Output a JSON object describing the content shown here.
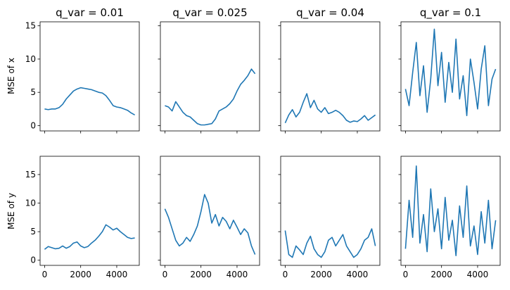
{
  "figure": {
    "ylabels": [
      "MSE of x",
      "MSE of y"
    ]
  },
  "chart_data": [
    {
      "type": "line",
      "row": 0,
      "col": 0,
      "title": "q_var = 0.01",
      "xlim": [
        -250,
        5250
      ],
      "ylim": [
        -0.8,
        15.6
      ],
      "xticks": [
        0,
        2000,
        4000
      ],
      "yticks": [
        0,
        5,
        10,
        15
      ],
      "series": [
        {
          "color": "#1f77b4",
          "x": [
            0,
            200,
            400,
            600,
            800,
            1000,
            1200,
            1400,
            1600,
            1800,
            2000,
            2200,
            2400,
            2600,
            2800,
            3000,
            3200,
            3400,
            3600,
            3800,
            4000,
            4200,
            4400,
            4600,
            4800,
            5000
          ],
          "y": [
            2.5,
            2.4,
            2.5,
            2.5,
            2.7,
            3.2,
            4.0,
            4.6,
            5.2,
            5.5,
            5.7,
            5.6,
            5.5,
            5.4,
            5.2,
            5.0,
            4.9,
            4.5,
            3.8,
            3.0,
            2.8,
            2.7,
            2.5,
            2.3,
            1.9,
            1.6
          ]
        }
      ]
    },
    {
      "type": "line",
      "row": 0,
      "col": 1,
      "title": "q_var = 0.025",
      "xlim": [
        -250,
        5250
      ],
      "ylim": [
        -0.8,
        15.6
      ],
      "xticks": [
        0,
        2000,
        4000
      ],
      "yticks": [
        0,
        5,
        10,
        15
      ],
      "series": [
        {
          "color": "#1f77b4",
          "x": [
            0,
            200,
            400,
            600,
            800,
            1000,
            1200,
            1400,
            1600,
            1800,
            2000,
            2200,
            2400,
            2600,
            2800,
            3000,
            3200,
            3400,
            3600,
            3800,
            4000,
            4200,
            4400,
            4600,
            4800,
            5000
          ],
          "y": [
            3.0,
            2.8,
            2.2,
            3.6,
            2.8,
            2.0,
            1.5,
            1.3,
            0.8,
            0.3,
            0.1,
            0.1,
            0.2,
            0.3,
            1.0,
            2.2,
            2.5,
            2.8,
            3.3,
            4.0,
            5.2,
            6.2,
            6.8,
            7.5,
            8.5,
            7.8
          ]
        }
      ]
    },
    {
      "type": "line",
      "row": 0,
      "col": 2,
      "title": "q_var = 0.04",
      "xlim": [
        -250,
        5250
      ],
      "ylim": [
        -0.8,
        15.6
      ],
      "xticks": [
        0,
        2000,
        4000
      ],
      "yticks": [
        0,
        5,
        10,
        15
      ],
      "series": [
        {
          "color": "#1f77b4",
          "x": [
            0,
            200,
            400,
            600,
            800,
            1000,
            1200,
            1400,
            1600,
            1800,
            2000,
            2200,
            2400,
            2600,
            2800,
            3000,
            3200,
            3400,
            3600,
            3800,
            4000,
            4200,
            4400,
            4600,
            4800,
            5000
          ],
          "y": [
            0.4,
            1.6,
            2.4,
            1.3,
            2.0,
            3.5,
            4.8,
            2.7,
            3.8,
            2.5,
            2.0,
            2.7,
            1.8,
            2.0,
            2.3,
            2.0,
            1.5,
            0.8,
            0.5,
            0.7,
            0.6,
            1.0,
            1.5,
            0.8,
            1.2,
            1.6
          ]
        }
      ]
    },
    {
      "type": "line",
      "row": 0,
      "col": 3,
      "title": "q_var = 0.1",
      "xlim": [
        -250,
        5250
      ],
      "ylim": [
        -0.8,
        15.6
      ],
      "xticks": [
        0,
        2000,
        4000
      ],
      "yticks": [
        0,
        5,
        10,
        15
      ],
      "series": [
        {
          "color": "#1f77b4",
          "x": [
            0,
            200,
            400,
            600,
            800,
            1000,
            1200,
            1400,
            1600,
            1800,
            2000,
            2200,
            2400,
            2600,
            2800,
            3000,
            3200,
            3400,
            3600,
            3800,
            4000,
            4200,
            4400,
            4600,
            4800,
            5000
          ],
          "y": [
            5.5,
            3.0,
            8.0,
            12.5,
            4.5,
            9.0,
            2.0,
            7.0,
            14.5,
            6.0,
            11.0,
            3.5,
            9.5,
            5.0,
            13.0,
            4.0,
            7.5,
            1.5,
            10.0,
            6.5,
            2.5,
            8.5,
            12.0,
            3.0,
            7.0,
            8.5
          ]
        }
      ]
    },
    {
      "type": "line",
      "row": 1,
      "col": 0,
      "title": "",
      "xlim": [
        -250,
        5250
      ],
      "ylim": [
        -0.9,
        18.2
      ],
      "xticks": [
        0,
        2000,
        4000
      ],
      "yticks": [
        0,
        5,
        10,
        15
      ],
      "series": [
        {
          "color": "#1f77b4",
          "x": [
            0,
            200,
            400,
            600,
            800,
            1000,
            1200,
            1400,
            1600,
            1800,
            2000,
            2200,
            2400,
            2600,
            2800,
            3000,
            3200,
            3400,
            3600,
            3800,
            4000,
            4200,
            4400,
            4600,
            4800,
            5000
          ],
          "y": [
            1.9,
            2.4,
            2.2,
            2.0,
            2.1,
            2.5,
            2.1,
            2.4,
            3.0,
            3.2,
            2.5,
            2.2,
            2.4,
            3.0,
            3.5,
            4.2,
            5.0,
            6.2,
            5.8,
            5.3,
            5.6,
            5.0,
            4.5,
            4.0,
            3.8,
            3.9
          ]
        }
      ]
    },
    {
      "type": "line",
      "row": 1,
      "col": 1,
      "title": "",
      "xlim": [
        -250,
        5250
      ],
      "ylim": [
        -0.9,
        18.2
      ],
      "xticks": [
        0,
        2000,
        4000
      ],
      "yticks": [
        0,
        5,
        10,
        15
      ],
      "series": [
        {
          "color": "#1f77b4",
          "x": [
            0,
            200,
            400,
            600,
            800,
            1000,
            1200,
            1400,
            1600,
            1800,
            2000,
            2200,
            2400,
            2600,
            2800,
            3000,
            3200,
            3400,
            3600,
            3800,
            4000,
            4200,
            4400,
            4600,
            4800,
            5000
          ],
          "y": [
            9.0,
            7.5,
            5.5,
            3.5,
            2.5,
            3.0,
            4.0,
            3.3,
            4.5,
            6.0,
            8.5,
            11.5,
            10.0,
            6.5,
            8.0,
            6.0,
            7.5,
            6.8,
            5.5,
            7.0,
            5.8,
            4.5,
            5.5,
            4.8,
            2.5,
            1.0
          ]
        }
      ]
    },
    {
      "type": "line",
      "row": 1,
      "col": 2,
      "title": "",
      "xlim": [
        -250,
        5250
      ],
      "ylim": [
        -0.9,
        18.2
      ],
      "xticks": [
        0,
        2000,
        4000
      ],
      "yticks": [
        0,
        5,
        10,
        15
      ],
      "series": [
        {
          "color": "#1f77b4",
          "x": [
            0,
            200,
            400,
            600,
            800,
            1000,
            1200,
            1400,
            1600,
            1800,
            2000,
            2200,
            2400,
            2600,
            2800,
            3000,
            3200,
            3400,
            3600,
            3800,
            4000,
            4200,
            4400,
            4600,
            4800,
            5000
          ],
          "y": [
            5.2,
            1.0,
            0.5,
            2.5,
            1.8,
            1.0,
            3.0,
            4.2,
            2.0,
            1.0,
            0.5,
            1.5,
            3.5,
            4.0,
            2.5,
            3.5,
            4.5,
            2.5,
            1.5,
            0.5,
            1.0,
            2.0,
            3.5,
            4.0,
            5.5,
            2.5
          ]
        }
      ]
    },
    {
      "type": "line",
      "row": 1,
      "col": 3,
      "title": "",
      "xlim": [
        -250,
        5250
      ],
      "ylim": [
        -0.9,
        18.2
      ],
      "xticks": [
        0,
        2000,
        4000
      ],
      "yticks": [
        0,
        5,
        10,
        15
      ],
      "series": [
        {
          "color": "#1f77b4",
          "x": [
            0,
            200,
            400,
            600,
            800,
            1000,
            1200,
            1400,
            1600,
            1800,
            2000,
            2200,
            2400,
            2600,
            2800,
            3000,
            3200,
            3400,
            3600,
            3800,
            4000,
            4200,
            4400,
            4600,
            4800,
            5000
          ],
          "y": [
            2.0,
            10.5,
            4.0,
            16.5,
            3.0,
            8.0,
            1.5,
            12.5,
            5.0,
            9.0,
            2.0,
            11.0,
            3.5,
            7.0,
            0.8,
            9.5,
            4.0,
            13.0,
            2.5,
            6.0,
            1.0,
            8.5,
            3.0,
            10.5,
            2.0,
            7.0
          ]
        }
      ]
    }
  ]
}
